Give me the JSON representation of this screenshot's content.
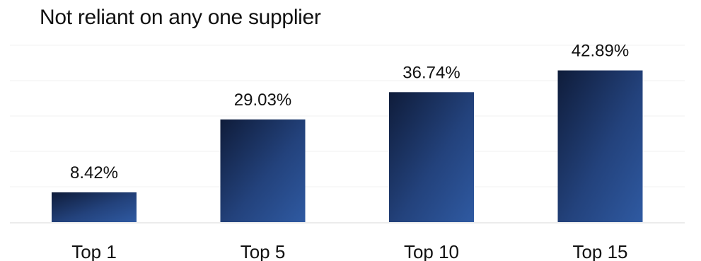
{
  "chart_data": {
    "type": "bar",
    "title": "Not reliant on any one supplier",
    "categories": [
      "Top 1",
      "Top 5",
      "Top 10",
      "Top 15"
    ],
    "values": [
      8.42,
      29.03,
      36.74,
      42.89
    ],
    "data_labels": [
      "8.42%",
      "29.03%",
      "36.74%",
      "42.89%"
    ],
    "xlabel": "",
    "ylabel": "",
    "ylim": [
      0,
      50
    ],
    "grid": true,
    "legend": "none",
    "colors": {
      "bar_dark": "#0f1c3a",
      "bar_light": "#2f5aa2",
      "grid": "#f1f1f1",
      "baseline": "#e6e6e6",
      "text": "#111111"
    }
  }
}
